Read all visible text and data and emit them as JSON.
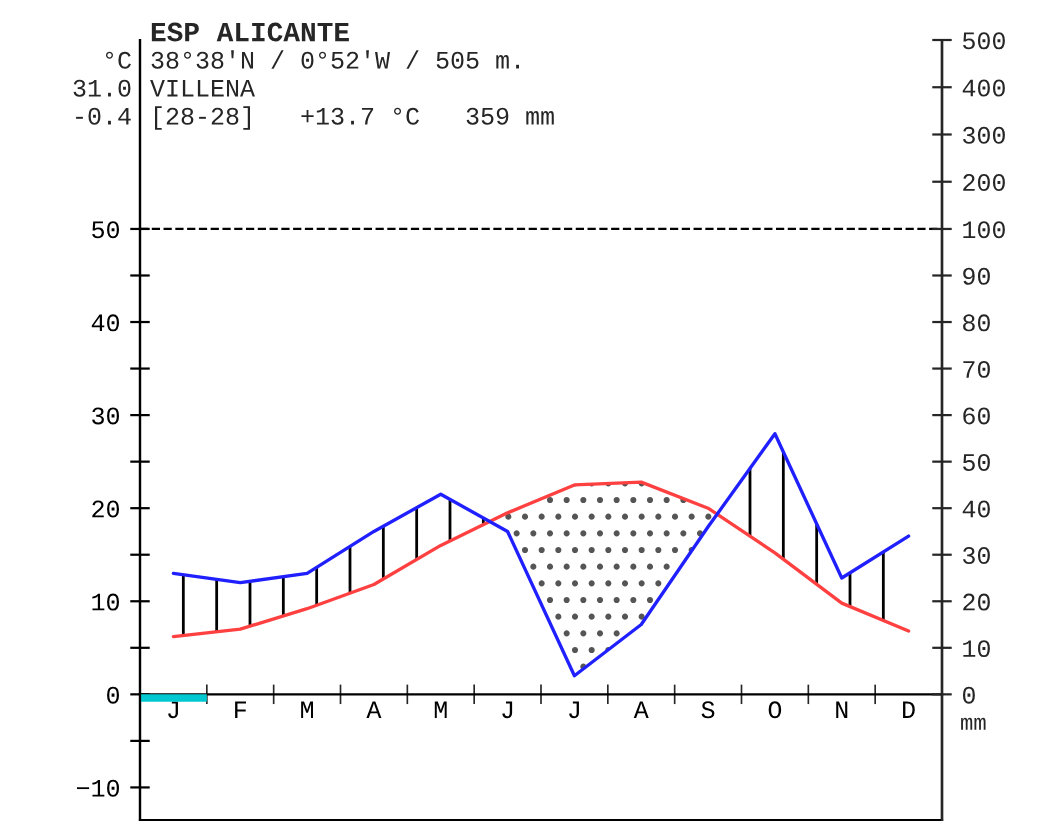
{
  "chart_data": {
    "type": "line",
    "title": "ESP ALICANTE",
    "categories": [
      "J",
      "F",
      "M",
      "A",
      "M",
      "J",
      "J",
      "A",
      "S",
      "O",
      "N",
      "D"
    ],
    "series": [
      {
        "color": "#ff4040",
        "values": [
          6.2,
          7,
          9.2,
          11.8,
          16,
          19.5,
          22.5,
          22.8,
          20,
          15.2,
          9.8,
          6.8
        ]
      },
      {
        "color": "#2020ff",
        "axis": "y2",
        "values": [
          26,
          24,
          26,
          35,
          43,
          35,
          4,
          15,
          36,
          56,
          25,
          34
        ]
      }
    ],
    "ylim": [
      -13.5,
      70.3
    ],
    "yticks": [
      {
        "value": -10,
        "label": "−10"
      },
      {
        "value": -5,
        "label": null
      },
      0,
      {
        "value": 5,
        "label": null
      },
      10,
      {
        "value": 15,
        "label": null
      },
      20,
      {
        "value": 25,
        "label": null
      },
      30,
      {
        "value": 35,
        "label": null
      },
      40,
      {
        "value": 45,
        "label": null
      },
      50
    ],
    "y2lim": [
      -27,
      140.6
    ],
    "y2ticks": [
      0,
      10,
      20,
      30,
      40,
      50,
      60,
      70,
      80,
      90,
      100
    ],
    "y3lim": [
      -1151,
      500
    ],
    "y3ticks": [
      200,
      300,
      400,
      500
    ],
    "ref_lines": [
      {
        "axis": "y",
        "value": 50,
        "line_style": "dashed",
        "color": "#000000"
      }
    ],
    "grid": false,
    "legend": false,
    "marker": "none",
    "line_style": "solid",
    "annotations": [
      "°C",
      "31.0",
      "-0.4",
      "38°38'N / 0°52'W / 505 m.",
      "VILLENA",
      "[28-28]   +13.7 °C   359 mm",
      "mm"
    ]
  }
}
